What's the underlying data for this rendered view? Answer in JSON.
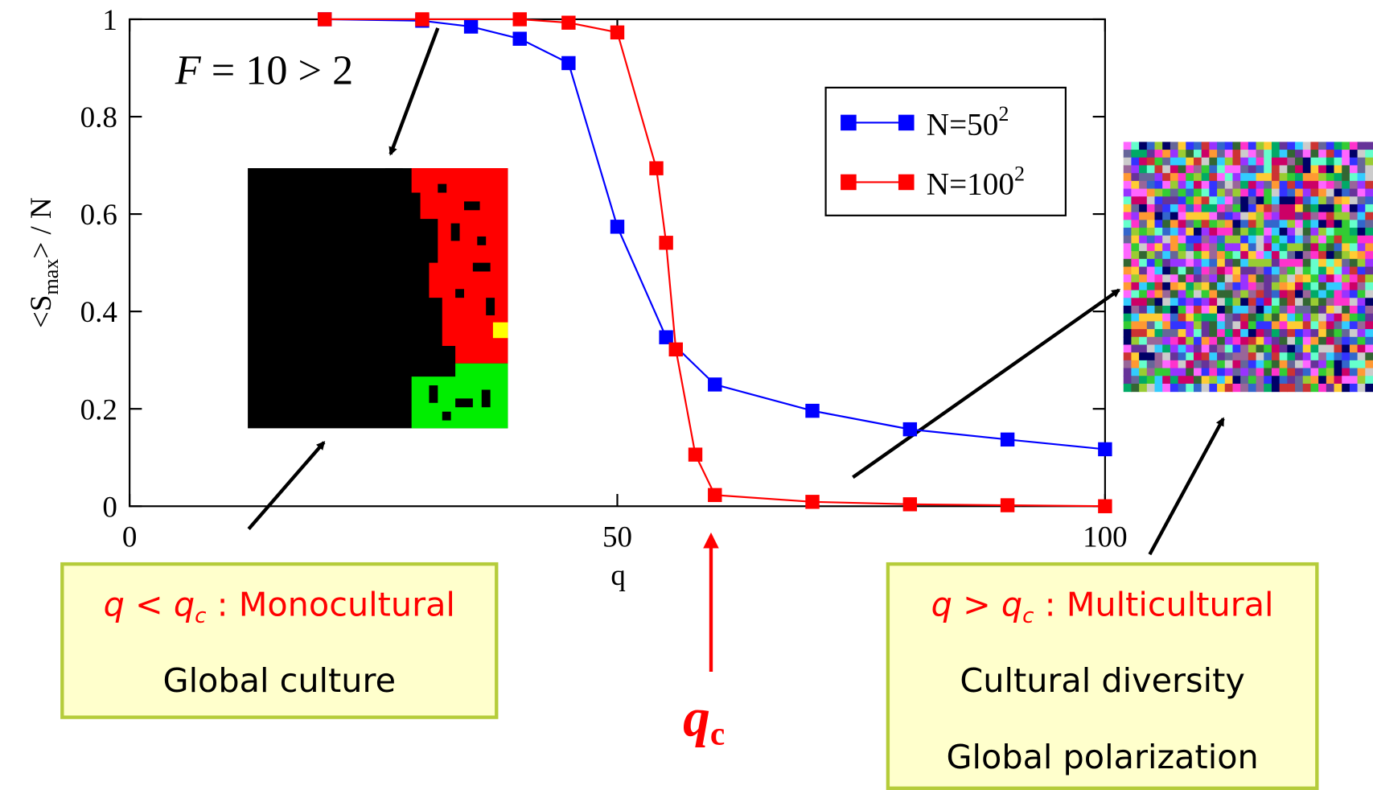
{
  "chart_data": {
    "type": "line",
    "xlabel": "q",
    "ylabel": {
      "main": "<S",
      "sub": "max",
      "rest": "> / N"
    },
    "xlim": [
      0,
      100
    ],
    "xticks": [
      0,
      50,
      100
    ],
    "ylim": [
      0,
      1
    ],
    "yticks": [
      0,
      0.2,
      0.4,
      0.6,
      0.8,
      1
    ],
    "legend": "upper right",
    "series": [
      {
        "name": "N=50",
        "name_superscript": "2",
        "color": "#0000ff",
        "x": [
          20,
          30,
          35,
          40,
          45,
          50,
          55,
          60,
          70,
          80,
          90,
          100
        ],
        "values": [
          1.0,
          0.997,
          0.985,
          0.96,
          0.91,
          0.574,
          0.347,
          0.25,
          0.196,
          0.158,
          0.137,
          0.117
        ]
      },
      {
        "name": "N=100",
        "name_superscript": "2",
        "color": "#ff0000",
        "x": [
          20,
          30,
          40,
          45,
          50,
          54,
          55,
          56,
          58,
          60,
          70,
          80,
          90,
          100
        ],
        "values": [
          1.0,
          1.0,
          1.0,
          0.993,
          0.973,
          0.694,
          0.541,
          0.322,
          0.106,
          0.023,
          0.009,
          0.004,
          0.002,
          0.0
        ]
      }
    ],
    "annotations": {
      "f_label": {
        "italic": "F",
        "rest": " = 10 > 2"
      },
      "qc_label": {
        "q": "q",
        "sub": "c"
      },
      "left_box": {
        "q": "q",
        "relation": " < ",
        "qc": "q",
        "qc_sub": "c",
        "regime": " : Monocultural",
        "lines": [
          "Global culture"
        ]
      },
      "right_box": {
        "q": "q",
        "relation": " > ",
        "qc": "q",
        "qc_sub": "c",
        "regime": " : Multicultural",
        "lines": [
          "Cultural diversity",
          "Global polarization"
        ]
      }
    }
  }
}
